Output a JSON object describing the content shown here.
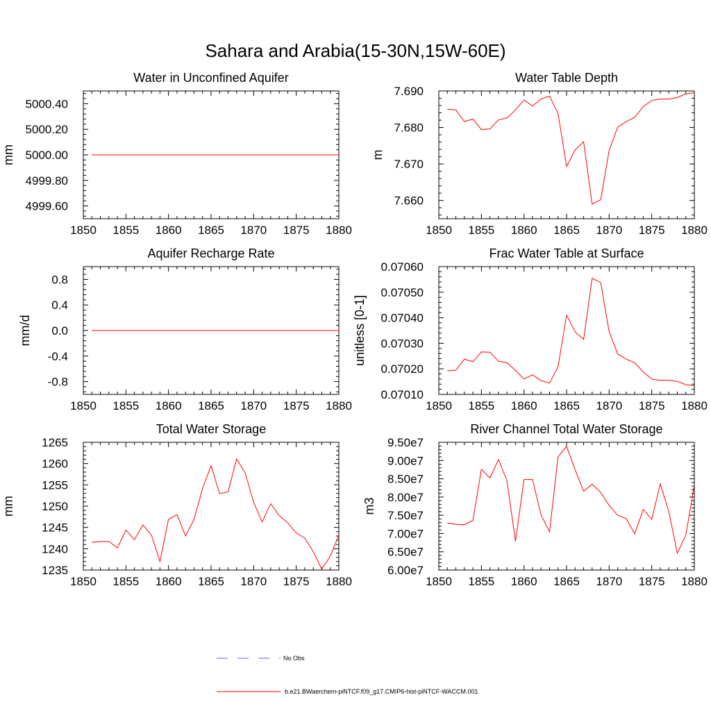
{
  "figure": {
    "title": "Sahara and Arabia(15-30N,15W-60E)"
  },
  "legend": {
    "items": [
      {
        "label": "No Obs",
        "color": "#6666cc",
        "dash": "dashed"
      },
      {
        "label": "b.e21.BWaerchem-piNTCF.f09_g17.CMIP6-hist-piNTCF-WACCM.001",
        "color": "#ff0000",
        "dash": "solid"
      }
    ]
  },
  "chart_data": [
    {
      "type": "line",
      "title": "Water in Unconfined Aquifer",
      "ylabel": "mm",
      "xlim": [
        1850,
        1880
      ],
      "ylim": [
        4999.5,
        5000.5
      ],
      "xticks": [
        1850,
        1855,
        1860,
        1865,
        1870,
        1875,
        1880
      ],
      "yticks": [
        4999.6,
        4999.8,
        5000.0,
        5000.2,
        5000.4
      ],
      "ytick_labels": [
        "4999.60",
        "4999.80",
        "5000.00",
        "5000.20",
        "5000.40"
      ],
      "series": [
        {
          "color": "#ff0000",
          "x": [
            1851,
            1880
          ],
          "y": [
            5000.0,
            5000.0
          ]
        }
      ]
    },
    {
      "type": "line",
      "title": "Water Table Depth",
      "ylabel": "m",
      "xlim": [
        1850,
        1880
      ],
      "ylim": [
        7.655,
        7.69
      ],
      "xticks": [
        1850,
        1855,
        1860,
        1865,
        1870,
        1875,
        1880
      ],
      "yticks": [
        7.66,
        7.67,
        7.68,
        7.69
      ],
      "ytick_labels": [
        "7.660",
        "7.670",
        "7.680",
        "7.690"
      ],
      "series": [
        {
          "color": "#ff0000",
          "x": [
            1851,
            1852,
            1853,
            1854,
            1855,
            1856,
            1857,
            1858,
            1859,
            1860,
            1861,
            1862,
            1863,
            1864,
            1865,
            1866,
            1867,
            1868,
            1869,
            1870,
            1871,
            1872,
            1873,
            1874,
            1875,
            1876,
            1877,
            1878,
            1879,
            1880
          ],
          "y": [
            7.685,
            7.6848,
            7.6816,
            7.6823,
            7.6794,
            7.6796,
            7.6821,
            7.6826,
            7.6848,
            7.6875,
            7.6859,
            7.6878,
            7.6886,
            7.6838,
            7.6693,
            7.6738,
            7.6761,
            7.659,
            7.6602,
            7.6737,
            7.6801,
            7.6816,
            7.6828,
            7.6857,
            7.6874,
            7.6878,
            7.6878,
            7.6882,
            7.6892,
            7.6895
          ]
        }
      ]
    },
    {
      "type": "line",
      "title": "Aquifer Recharge Rate",
      "ylabel": "mm/d",
      "xlim": [
        1850,
        1880
      ],
      "ylim": [
        -1.0,
        1.0
      ],
      "xticks": [
        1850,
        1855,
        1860,
        1865,
        1870,
        1875,
        1880
      ],
      "yticks": [
        -0.8,
        -0.4,
        0.0,
        0.4,
        0.8
      ],
      "ytick_labels": [
        "-0.8",
        "-0.4",
        "0.0",
        "0.4",
        "0.8"
      ],
      "series": [
        {
          "color": "#ff0000",
          "x": [
            1851,
            1880
          ],
          "y": [
            0.0,
            0.0
          ]
        }
      ]
    },
    {
      "type": "line",
      "title": "Frac Water Table at Surface",
      "ylabel": "unitless [0-1]",
      "xlim": [
        1850,
        1880
      ],
      "ylim": [
        0.0701,
        0.0706
      ],
      "xticks": [
        1850,
        1855,
        1860,
        1865,
        1870,
        1875,
        1880
      ],
      "yticks": [
        0.0701,
        0.0702,
        0.0703,
        0.0704,
        0.0705,
        0.0706
      ],
      "ytick_labels": [
        "0.07010",
        "0.07020",
        "0.07030",
        "0.07040",
        "0.07050",
        "0.07060"
      ],
      "series": [
        {
          "color": "#ff0000",
          "x": [
            1851,
            1852,
            1853,
            1854,
            1855,
            1856,
            1857,
            1858,
            1859,
            1860,
            1861,
            1862,
            1863,
            1864,
            1865,
            1866,
            1867,
            1868,
            1869,
            1870,
            1871,
            1872,
            1873,
            1874,
            1875,
            1876,
            1877,
            1878,
            1879,
            1880
          ],
          "y": [
            0.070192,
            0.070195,
            0.070238,
            0.070228,
            0.070266,
            0.070265,
            0.07023,
            0.070224,
            0.070194,
            0.07016,
            0.070177,
            0.070154,
            0.070144,
            0.070208,
            0.07041,
            0.070345,
            0.070315,
            0.070554,
            0.070538,
            0.070345,
            0.070258,
            0.070238,
            0.070224,
            0.070188,
            0.07016,
            0.070155,
            0.070155,
            0.070151,
            0.070138,
            0.070134
          ]
        }
      ]
    },
    {
      "type": "line",
      "title": "Total Water Storage",
      "ylabel": "mm",
      "xlim": [
        1850,
        1880
      ],
      "ylim": [
        1235,
        1265
      ],
      "xticks": [
        1850,
        1855,
        1860,
        1865,
        1870,
        1875,
        1880
      ],
      "yticks": [
        1235,
        1240,
        1245,
        1250,
        1255,
        1260,
        1265
      ],
      "ytick_labels": [
        "1235",
        "1240",
        "1245",
        "1250",
        "1255",
        "1260",
        "1265"
      ],
      "series": [
        {
          "color": "#ff0000",
          "x": [
            1851,
            1852,
            1853,
            1854,
            1855,
            1856,
            1857,
            1858,
            1859,
            1860,
            1861,
            1862,
            1863,
            1864,
            1865,
            1866,
            1867,
            1868,
            1869,
            1870,
            1871,
            1872,
            1873,
            1874,
            1875,
            1876,
            1877,
            1878,
            1879,
            1880
          ],
          "y": [
            1241.5,
            1241.7,
            1241.7,
            1240.2,
            1244.4,
            1242.1,
            1245.6,
            1243.2,
            1237.0,
            1246.9,
            1248.0,
            1243.0,
            1246.9,
            1254.2,
            1259.5,
            1252.9,
            1253.4,
            1261.1,
            1257.8,
            1250.9,
            1246.3,
            1250.6,
            1247.8,
            1246.1,
            1243.7,
            1242.5,
            1239.3,
            1235.2,
            1238.3,
            1243.2
          ]
        }
      ]
    },
    {
      "type": "line",
      "title": "River Channel Total Water Storage",
      "ylabel": "m3",
      "xlim": [
        1850,
        1880
      ],
      "ylim": [
        60000000,
        95000000
      ],
      "xticks": [
        1850,
        1855,
        1860,
        1865,
        1870,
        1875,
        1880
      ],
      "yticks": [
        60000000,
        65000000,
        70000000,
        75000000,
        80000000,
        85000000,
        90000000,
        95000000
      ],
      "ytick_labels": [
        "6.00e7",
        "6.50e7",
        "7.00e7",
        "7.50e7",
        "8.00e7",
        "8.50e7",
        "9.00e7",
        "9.50e7"
      ],
      "series": [
        {
          "color": "#ff0000",
          "x": [
            1851,
            1852,
            1853,
            1854,
            1855,
            1856,
            1857,
            1858,
            1859,
            1860,
            1861,
            1862,
            1863,
            1864,
            1865,
            1866,
            1867,
            1868,
            1869,
            1870,
            1871,
            1872,
            1873,
            1874,
            1875,
            1876,
            1877,
            1878,
            1879,
            1880
          ],
          "y": [
            72900000,
            72500000,
            72400000,
            73600000,
            87600000,
            85200000,
            90300000,
            84500000,
            67900000,
            84800000,
            84800000,
            75100000,
            70500000,
            91000000,
            93900000,
            87500000,
            81600000,
            83500000,
            81300000,
            77700000,
            75000000,
            74100000,
            69900000,
            76600000,
            73900000,
            83600000,
            76100000,
            64600000,
            69600000,
            83300000
          ]
        }
      ]
    }
  ]
}
